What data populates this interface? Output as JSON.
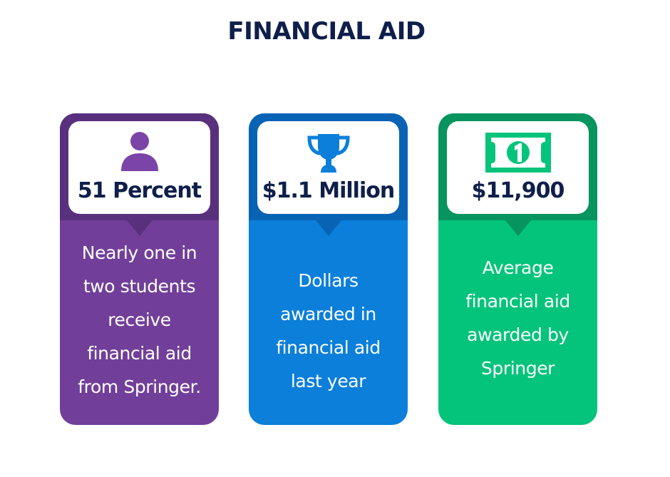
{
  "title": "FINANCIAL AID",
  "cards": [
    {
      "icon": "person-icon",
      "value": "51 Percent",
      "description": "Nearly one in two students receive financial aid from Springer.",
      "color": "#713f99"
    },
    {
      "icon": "trophy-icon",
      "value": "$1.1 Million",
      "description": "Dollars awarded in financial aid last year",
      "color": "#0b7fda"
    },
    {
      "icon": "dollar-bill-icon",
      "value": "$11,900",
      "description": "Average financial aid awarded by Springer",
      "color": "#03c47a"
    }
  ]
}
